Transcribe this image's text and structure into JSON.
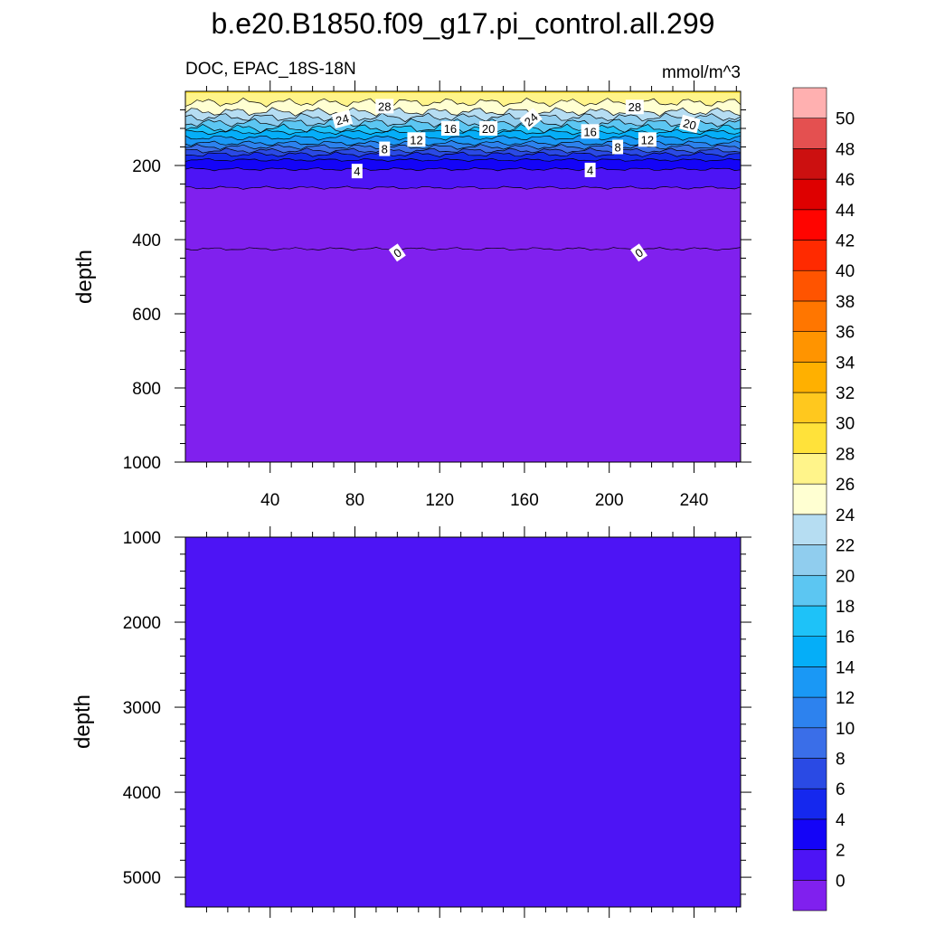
{
  "chart_data": {
    "type": "heatmap",
    "title": "b.e20.B1850.f09_g17.pi_control.all.299",
    "variable": "DOC, EPAC_18S-18N",
    "units": "mmol/m^3",
    "colorbar": {
      "levels": [
        0,
        2,
        4,
        6,
        8,
        10,
        12,
        14,
        16,
        18,
        20,
        22,
        24,
        26,
        28,
        30,
        32,
        34,
        36,
        38,
        40,
        42,
        44,
        46,
        48,
        50
      ],
      "labels": [
        "0",
        "2",
        "4",
        "6",
        "8",
        "10",
        "12",
        "14",
        "16",
        "18",
        "20",
        "22",
        "24",
        "26",
        "28",
        "30",
        "32",
        "34",
        "36",
        "38",
        "40",
        "42",
        "44",
        "46",
        "48",
        "50"
      ],
      "colors": [
        "#8020ee",
        "#4d14f5",
        "#1404f7",
        "#1528ee",
        "#2a4ae4",
        "#3a6ee8",
        "#2d82ee",
        "#1a98f5",
        "#05aef8",
        "#1ec2f8",
        "#5cc6f2",
        "#90cdee",
        "#b6ddf2",
        "#ffffd2",
        "#fff48a",
        "#ffe23a",
        "#ffc81e",
        "#ffb000",
        "#ff9400",
        "#ff7600",
        "#ff5400",
        "#ff2a00",
        "#ff0400",
        "#de0000",
        "#cc1010",
        "#e45050",
        "#ffb0b0"
      ]
    },
    "panels": [
      {
        "name": "upper",
        "xlim": [
          0,
          262
        ],
        "ylim": [
          0,
          1000
        ],
        "y_reversed": true,
        "xticks": [
          40,
          80,
          120,
          160,
          200,
          240
        ],
        "xtick_labels": [
          "40",
          "80",
          "120",
          "160",
          "200",
          "240"
        ],
        "yticks": [
          200,
          400,
          600,
          800,
          1000
        ],
        "ytick_labels": [
          "200",
          "400",
          "600",
          "800",
          "1000"
        ],
        "ylabel": "depth",
        "contour_levels": [
          28,
          26,
          24,
          22,
          20,
          18,
          16,
          14,
          12,
          10,
          8,
          6,
          4,
          2,
          0
        ],
        "contour_depths": [
          5,
          30,
          55,
          70,
          85,
          100,
          110,
          125,
          140,
          150,
          160,
          170,
          185,
          210,
          260,
          425
        ],
        "contour_labels": [
          {
            "text": "28",
            "x": 94,
            "y": 40,
            "angle": 0
          },
          {
            "text": "24",
            "x": 74,
            "y": 75,
            "angle": -15
          },
          {
            "text": "12",
            "x": 109,
            "y": 130,
            "angle": 0
          },
          {
            "text": "16",
            "x": 125,
            "y": 100,
            "angle": 0
          },
          {
            "text": "20",
            "x": 143,
            "y": 100,
            "angle": 0
          },
          {
            "text": "24",
            "x": 163,
            "y": 75,
            "angle": -40
          },
          {
            "text": "28",
            "x": 212,
            "y": 42,
            "angle": 0
          },
          {
            "text": "20",
            "x": 238,
            "y": 88,
            "angle": 15
          },
          {
            "text": "16",
            "x": 191,
            "y": 108,
            "angle": 0
          },
          {
            "text": "12",
            "x": 218,
            "y": 130,
            "angle": 0
          },
          {
            "text": "8",
            "x": 94,
            "y": 155,
            "angle": 0
          },
          {
            "text": "8",
            "x": 204,
            "y": 150,
            "angle": 0
          },
          {
            "text": "4",
            "x": 81,
            "y": 215,
            "angle": 0
          },
          {
            "text": "4",
            "x": 191,
            "y": 212,
            "angle": 0
          },
          {
            "text": "0",
            "x": 100,
            "y": 435,
            "angle": -35
          },
          {
            "text": "0",
            "x": 214,
            "y": 435,
            "angle": -35
          }
        ]
      },
      {
        "name": "lower",
        "xlim": [
          0,
          262
        ],
        "ylim": [
          1000,
          5350
        ],
        "y_reversed": true,
        "yticks": [
          1000,
          2000,
          3000,
          4000,
          5000
        ],
        "ytick_labels": [
          "1000",
          "2000",
          "3000",
          "4000",
          "5000"
        ],
        "ylabel": "depth",
        "fill_level": 0
      }
    ]
  }
}
